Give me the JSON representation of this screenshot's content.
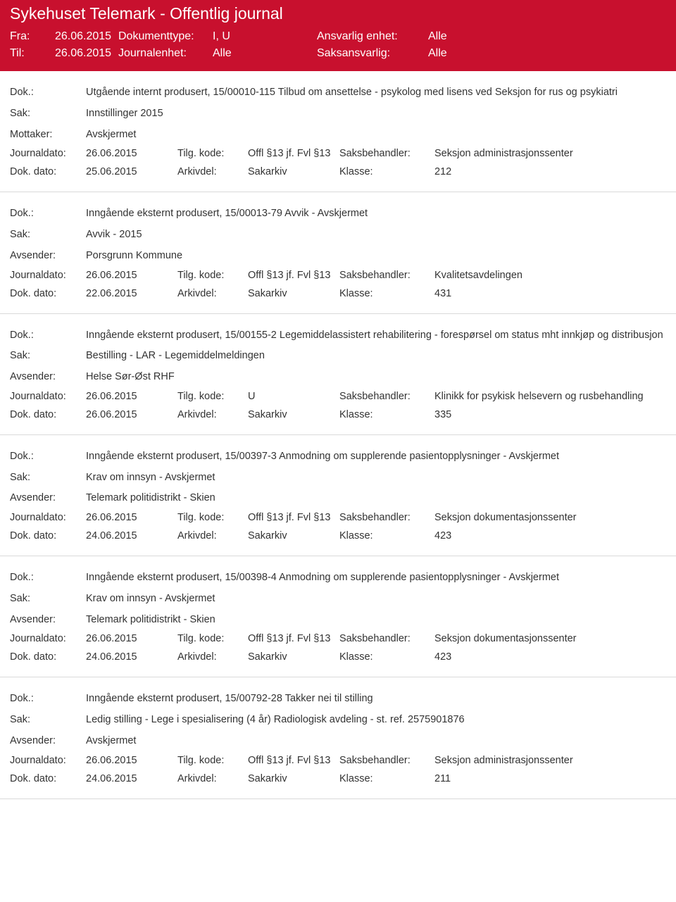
{
  "header": {
    "title": "Sykehuset Telemark - Offentlig journal",
    "fra_label": "Fra:",
    "fra_value": "26.06.2015",
    "til_label": "Til:",
    "til_value": "26.06.2015",
    "dokumenttype_label": "Dokumenttype:",
    "dokumenttype_value": "I, U",
    "journalenhet_label": "Journalenhet:",
    "journalenhet_value": "Alle",
    "ansvarlig_label": "Ansvarlig enhet:",
    "ansvarlig_value": "Alle",
    "saksansvarlig_label": "Saksansvarlig:",
    "saksansvarlig_value": "Alle"
  },
  "labels": {
    "dok": "Dok.:",
    "sak": "Sak:",
    "mottaker": "Mottaker:",
    "avsender": "Avsender:",
    "journaldato": "Journaldato:",
    "dokdato": "Dok. dato:",
    "tilgkode": "Tilg. kode:",
    "arkivdel": "Arkivdel:",
    "saksbehandler": "Saksbehandler:",
    "klasse": "Klasse:"
  },
  "entries": [
    {
      "dok": "Utgående internt produsert, 15/00010-115 Tilbud om ansettelse - psykolog med lisens ved Seksjon for rus og psykiatri",
      "sak": "Innstillinger 2015",
      "party_label": "Mottaker:",
      "party_value": "Avskjermet",
      "journaldato": "26.06.2015",
      "tilgkode": "Offl §13 jf. Fvl §13",
      "saksbehandler": "Seksjon administrasjonssenter",
      "dokdato": "25.06.2015",
      "arkivdel": "Sakarkiv",
      "klasse": "212"
    },
    {
      "dok": "Inngående eksternt produsert, 15/00013-79 Avvik - Avskjermet",
      "sak": "Avvik - 2015",
      "party_label": "Avsender:",
      "party_value": "Porsgrunn Kommune",
      "journaldato": "26.06.2015",
      "tilgkode": "Offl §13 jf. Fvl §13",
      "saksbehandler": "Kvalitetsavdelingen",
      "dokdato": "22.06.2015",
      "arkivdel": "Sakarkiv",
      "klasse": "431"
    },
    {
      "dok": "Inngående eksternt produsert, 15/00155-2 Legemiddelassistert rehabilitering - forespørsel om status mht innkjøp og distribusjon",
      "sak": "Bestilling - LAR - Legemiddelmeldingen",
      "party_label": "Avsender:",
      "party_value": "Helse Sør-Øst RHF",
      "journaldato": "26.06.2015",
      "tilgkode": "U",
      "saksbehandler": "Klinikk for psykisk helsevern og rusbehandling",
      "dokdato": "26.06.2015",
      "arkivdel": "Sakarkiv",
      "klasse": "335"
    },
    {
      "dok": "Inngående eksternt produsert, 15/00397-3 Anmodning om supplerende pasientopplysninger - Avskjermet",
      "sak": "Krav om innsyn - Avskjermet",
      "party_label": "Avsender:",
      "party_value": "Telemark politidistrikt - Skien",
      "journaldato": "26.06.2015",
      "tilgkode": "Offl §13 jf. Fvl §13",
      "saksbehandler": "Seksjon dokumentasjonssenter",
      "dokdato": "24.06.2015",
      "arkivdel": "Sakarkiv",
      "klasse": "423"
    },
    {
      "dok": "Inngående eksternt produsert, 15/00398-4 Anmodning om supplerende pasientopplysninger - Avskjermet",
      "sak": "Krav om innsyn - Avskjermet",
      "party_label": "Avsender:",
      "party_value": "Telemark politidistrikt - Skien",
      "journaldato": "26.06.2015",
      "tilgkode": "Offl §13 jf. Fvl §13",
      "saksbehandler": "Seksjon dokumentasjonssenter",
      "dokdato": "24.06.2015",
      "arkivdel": "Sakarkiv",
      "klasse": "423"
    },
    {
      "dok": "Inngående eksternt produsert, 15/00792-28 Takker nei til stilling",
      "sak": "Ledig stilling - Lege i spesialisering (4 år) Radiologisk avdeling - st. ref. 2575901876",
      "party_label": "Avsender:",
      "party_value": "Avskjermet",
      "journaldato": "26.06.2015",
      "tilgkode": "Offl §13 jf. Fvl §13",
      "saksbehandler": "Seksjon administrasjonssenter",
      "dokdato": "24.06.2015",
      "arkivdel": "Sakarkiv",
      "klasse": "211"
    }
  ]
}
